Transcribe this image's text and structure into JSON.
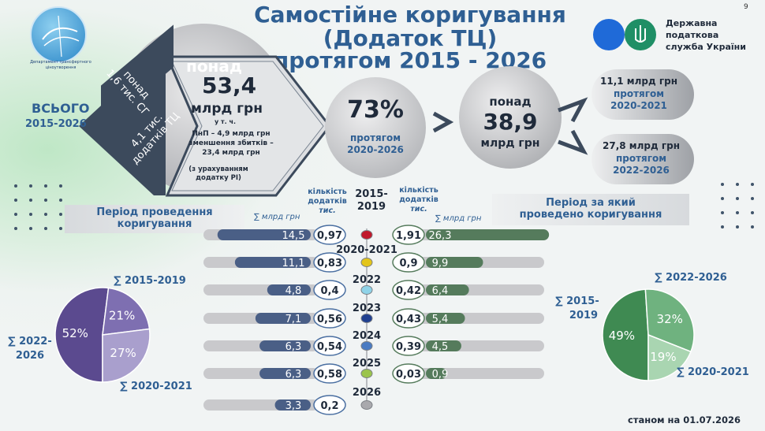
{
  "page_number": "9",
  "logo_left_text": "Департамент трансфертного ціноутворення",
  "title": {
    "line1": "Самостійне коригування",
    "line2": "(Додаток ТЦ)",
    "line3": "протягом 2015 - 2026"
  },
  "logo_right": {
    "line1": "Державна",
    "line2": "податкова",
    "line3": "служба України"
  },
  "total_block": {
    "label": "ВСЬОГО",
    "period": "2015-2026",
    "stripe1_line1": "понад",
    "stripe1_line2": "1,6 тис. СГ",
    "stripe2_line1": "4,1 тис.",
    "stripe2_line2": "додатків ТЦ",
    "over": "понад",
    "amount": "53,4",
    "unit": "млрд грн",
    "incl": "у т. ч.",
    "note_line1": "ПнП – 4,9 млрд грн",
    "note_line2": "зменшення збитків –",
    "note_line3": "23,4 млрд грн",
    "note_line4": "(з урахуванням",
    "note_line5": "додатку РІ)"
  },
  "share_circle": {
    "value": "73%",
    "label_line1": "протягом",
    "label_line2": "2020-2026"
  },
  "big_circle": {
    "over": "понад",
    "amount": "38,9",
    "unit": "млрд грн"
  },
  "right_pill_top": {
    "amount": "11,1 млрд грн",
    "line2": "протягом",
    "line3": "2020-2021"
  },
  "right_pill_bottom": {
    "amount": "27,8 млрд грн",
    "line2": "протягом",
    "line3": "2022-2026"
  },
  "left_section_title_line1": "Період проведення",
  "left_section_title_line2": "коригування",
  "right_section_title_line1": "Період за який",
  "right_section_title_line2": "проведено коригування",
  "sum_header_left": "∑ млрд грн",
  "sum_header_right": "∑ млрд грн",
  "count_header_left": {
    "line1": "кількість",
    "line2": "додатків",
    "line3": "тис."
  },
  "count_header_right": {
    "line1": "кількість",
    "line2": "додатків",
    "line3": "тис."
  },
  "as_of": "станом на 01.07.2026",
  "colors": {
    "title": "#2f5f93",
    "left_bar": "#4a5f86",
    "right_bar": "#557b5c",
    "track": "#c9c9cc",
    "pie_left": [
      "#5b4a8f",
      "#7e6fb1",
      "#a99fcd"
    ],
    "pie_right": [
      "#3f8a52",
      "#6fb27f",
      "#a9d5b1"
    ]
  },
  "chart_data": [
    {
      "type": "bar",
      "title": "",
      "categories": [
        "2015-2019",
        "2020-2021",
        "2022",
        "2023",
        "2024",
        "2025",
        "2026"
      ],
      "series": [
        {
          "name": "∑ млрд грн",
          "values": [
            14.5,
            11.1,
            4.8,
            7.1,
            6.3,
            6.3,
            3.3
          ],
          "labels": [
            "14,5",
            "11,1",
            "4,8",
            "7,1",
            "6,3",
            "6,3",
            "3,3"
          ]
        },
        {
          "name": "кількість додатків тис.",
          "values": [
            0.97,
            0.83,
            0.4,
            0.56,
            0.54,
            0.58,
            0.2
          ],
          "labels": [
            "0,97",
            "0,83",
            "0,4",
            "0,56",
            "0,54",
            "0,58",
            "0,2"
          ]
        }
      ],
      "timeline_dot_colors": [
        "#c0182b",
        "#e3c51a",
        "#8fd3e8",
        "#1f3f8f",
        "#4a7bc2",
        "#9bc44c",
        "#a9a9ad"
      ]
    },
    {
      "type": "bar",
      "title": "",
      "categories": [
        "2015-2019",
        "2020-2021",
        "2022",
        "2023",
        "2024",
        "2025"
      ],
      "series": [
        {
          "name": "∑ млрд грн",
          "values": [
            26.3,
            9.9,
            6.4,
            5.4,
            4.5,
            0.9
          ],
          "labels": [
            "26,3",
            "9,9",
            "6,4",
            "5,4",
            "4,5",
            "0,9"
          ]
        },
        {
          "name": "кількість додатків тис.",
          "values": [
            1.91,
            0.9,
            0.42,
            0.43,
            0.39,
            0.03
          ],
          "labels": [
            "1,91",
            "0,9",
            "0,42",
            "0,43",
            "0,39",
            "0,03"
          ]
        }
      ]
    },
    {
      "type": "pie",
      "title": "",
      "labels": [
        "∑ 2022-2026",
        "∑ 2020-2021",
        "∑ 2015-2019"
      ],
      "values": [
        52,
        21,
        27
      ],
      "value_labels": [
        "52%",
        "21%",
        "27%"
      ]
    },
    {
      "type": "pie",
      "title": "",
      "labels": [
        "∑ 2015-2019",
        "∑ 2022-2026",
        "∑ 2020-2021"
      ],
      "values": [
        49,
        32,
        19
      ],
      "value_labels": [
        "49%",
        "32%",
        "19%"
      ]
    }
  ]
}
